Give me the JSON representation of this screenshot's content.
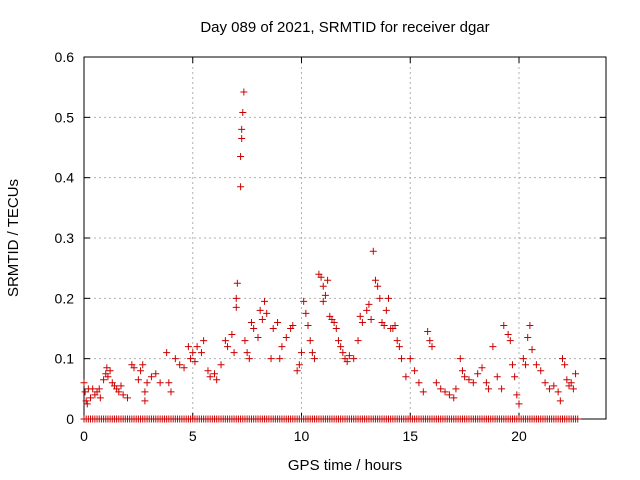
{
  "chart_data": {
    "type": "scatter",
    "title": "Day 089 of 2021, SRMTID for receiver dgar",
    "xlabel": "GPS time / hours",
    "ylabel": "SRMTID / TECUs",
    "xlim": [
      0,
      24
    ],
    "ylim": [
      0,
      0.6
    ],
    "xticks": [
      0,
      5,
      10,
      15,
      20
    ],
    "xtick_labels": [
      "0",
      "5",
      "10",
      "15",
      "20"
    ],
    "yticks": [
      0,
      0.1,
      0.2,
      0.3,
      0.4,
      0.5,
      0.6
    ],
    "ytick_labels": [
      "0",
      "0.1",
      "0.2",
      "0.3",
      "0.4",
      "0.5",
      "0.6"
    ],
    "grid": true,
    "marker": "plus",
    "color": "#cc0000",
    "baseline_series": {
      "name": "zero values",
      "x_start": 0.0,
      "x_end": 22.7,
      "x_step": 0.1,
      "y": 0
    },
    "series": [
      {
        "name": "SRMTID",
        "points": [
          [
            0.0,
            0.06
          ],
          [
            0.05,
            0.045
          ],
          [
            0.1,
            0.03
          ],
          [
            0.15,
            0.025
          ],
          [
            0.2,
            0.05
          ],
          [
            0.3,
            0.035
          ],
          [
            0.4,
            0.05
          ],
          [
            0.5,
            0.04
          ],
          [
            0.6,
            0.045
          ],
          [
            0.7,
            0.05
          ],
          [
            0.75,
            0.035
          ],
          [
            0.9,
            0.065
          ],
          [
            1.0,
            0.075
          ],
          [
            1.05,
            0.085
          ],
          [
            1.1,
            0.07
          ],
          [
            1.2,
            0.08
          ],
          [
            1.3,
            0.06
          ],
          [
            1.4,
            0.055
          ],
          [
            1.5,
            0.05
          ],
          [
            1.6,
            0.045
          ],
          [
            1.7,
            0.055
          ],
          [
            1.8,
            0.04
          ],
          [
            2.0,
            0.035
          ],
          [
            2.2,
            0.09
          ],
          [
            2.3,
            0.085
          ],
          [
            2.5,
            0.065
          ],
          [
            2.6,
            0.08
          ],
          [
            2.7,
            0.09
          ],
          [
            2.8,
            0.045
          ],
          [
            2.8,
            0.03
          ],
          [
            2.9,
            0.06
          ],
          [
            3.1,
            0.07
          ],
          [
            3.3,
            0.075
          ],
          [
            3.5,
            0.06
          ],
          [
            3.8,
            0.11
          ],
          [
            3.9,
            0.06
          ],
          [
            4.0,
            0.045
          ],
          [
            4.2,
            0.1
          ],
          [
            4.4,
            0.09
          ],
          [
            4.6,
            0.085
          ],
          [
            4.8,
            0.12
          ],
          [
            4.9,
            0.1
          ],
          [
            5.0,
            0.11
          ],
          [
            5.1,
            0.095
          ],
          [
            5.2,
            0.12
          ],
          [
            5.4,
            0.11
          ],
          [
            5.5,
            0.13
          ],
          [
            5.7,
            0.08
          ],
          [
            5.8,
            0.07
          ],
          [
            6.0,
            0.075
          ],
          [
            6.1,
            0.065
          ],
          [
            6.3,
            0.09
          ],
          [
            6.5,
            0.13
          ],
          [
            6.6,
            0.12
          ],
          [
            6.8,
            0.14
          ],
          [
            6.9,
            0.11
          ],
          [
            7.0,
            0.185
          ],
          [
            7.0,
            0.2
          ],
          [
            7.05,
            0.225
          ],
          [
            7.2,
            0.385
          ],
          [
            7.2,
            0.435
          ],
          [
            7.25,
            0.465
          ],
          [
            7.25,
            0.48
          ],
          [
            7.3,
            0.508
          ],
          [
            7.35,
            0.542
          ],
          [
            7.4,
            0.13
          ],
          [
            7.5,
            0.11
          ],
          [
            7.6,
            0.1
          ],
          [
            7.7,
            0.16
          ],
          [
            7.8,
            0.15
          ],
          [
            8.0,
            0.135
          ],
          [
            8.1,
            0.18
          ],
          [
            8.2,
            0.165
          ],
          [
            8.3,
            0.195
          ],
          [
            8.4,
            0.175
          ],
          [
            8.6,
            0.1
          ],
          [
            8.7,
            0.15
          ],
          [
            8.9,
            0.16
          ],
          [
            9.0,
            0.1
          ],
          [
            9.1,
            0.12
          ],
          [
            9.3,
            0.135
          ],
          [
            9.5,
            0.15
          ],
          [
            9.6,
            0.155
          ],
          [
            9.8,
            0.08
          ],
          [
            9.9,
            0.09
          ],
          [
            10.0,
            0.11
          ],
          [
            10.1,
            0.195
          ],
          [
            10.2,
            0.175
          ],
          [
            10.3,
            0.155
          ],
          [
            10.4,
            0.13
          ],
          [
            10.5,
            0.11
          ],
          [
            10.6,
            0.1
          ],
          [
            10.8,
            0.24
          ],
          [
            10.9,
            0.235
          ],
          [
            11.0,
            0.22
          ],
          [
            11.0,
            0.195
          ],
          [
            11.1,
            0.205
          ],
          [
            11.2,
            0.23
          ],
          [
            11.3,
            0.17
          ],
          [
            11.4,
            0.165
          ],
          [
            11.5,
            0.16
          ],
          [
            11.6,
            0.15
          ],
          [
            11.7,
            0.13
          ],
          [
            11.8,
            0.12
          ],
          [
            11.9,
            0.11
          ],
          [
            12.0,
            0.1
          ],
          [
            12.1,
            0.095
          ],
          [
            12.2,
            0.105
          ],
          [
            12.4,
            0.1
          ],
          [
            12.6,
            0.13
          ],
          [
            12.7,
            0.17
          ],
          [
            12.8,
            0.16
          ],
          [
            13.0,
            0.18
          ],
          [
            13.1,
            0.19
          ],
          [
            13.2,
            0.165
          ],
          [
            13.3,
            0.278
          ],
          [
            13.4,
            0.23
          ],
          [
            13.5,
            0.22
          ],
          [
            13.6,
            0.2
          ],
          [
            13.7,
            0.16
          ],
          [
            13.8,
            0.155
          ],
          [
            13.9,
            0.18
          ],
          [
            14.0,
            0.2
          ],
          [
            14.1,
            0.15
          ],
          [
            14.2,
            0.15
          ],
          [
            14.3,
            0.155
          ],
          [
            14.4,
            0.13
          ],
          [
            14.5,
            0.12
          ],
          [
            14.6,
            0.1
          ],
          [
            14.8,
            0.07
          ],
          [
            15.0,
            0.1
          ],
          [
            15.2,
            0.08
          ],
          [
            15.4,
            0.06
          ],
          [
            15.6,
            0.045
          ],
          [
            15.8,
            0.145
          ],
          [
            15.9,
            0.13
          ],
          [
            16.0,
            0.12
          ],
          [
            16.2,
            0.06
          ],
          [
            16.4,
            0.05
          ],
          [
            16.6,
            0.045
          ],
          [
            16.8,
            0.04
          ],
          [
            17.0,
            0.035
          ],
          [
            17.1,
            0.05
          ],
          [
            17.3,
            0.1
          ],
          [
            17.4,
            0.08
          ],
          [
            17.5,
            0.07
          ],
          [
            17.7,
            0.065
          ],
          [
            17.9,
            0.06
          ],
          [
            18.1,
            0.075
          ],
          [
            18.3,
            0.085
          ],
          [
            18.5,
            0.06
          ],
          [
            18.6,
            0.05
          ],
          [
            18.8,
            0.12
          ],
          [
            19.0,
            0.07
          ],
          [
            19.2,
            0.05
          ],
          [
            19.3,
            0.155
          ],
          [
            19.5,
            0.14
          ],
          [
            19.6,
            0.13
          ],
          [
            19.7,
            0.09
          ],
          [
            19.8,
            0.07
          ],
          [
            19.9,
            0.04
          ],
          [
            20.0,
            0.025
          ],
          [
            20.2,
            0.1
          ],
          [
            20.3,
            0.09
          ],
          [
            20.4,
            0.135
          ],
          [
            20.5,
            0.155
          ],
          [
            20.6,
            0.115
          ],
          [
            20.8,
            0.09
          ],
          [
            21.0,
            0.08
          ],
          [
            21.2,
            0.06
          ],
          [
            21.4,
            0.05
          ],
          [
            21.6,
            0.055
          ],
          [
            21.8,
            0.045
          ],
          [
            21.9,
            0.03
          ],
          [
            22.0,
            0.1
          ],
          [
            22.1,
            0.09
          ],
          [
            22.2,
            0.065
          ],
          [
            22.3,
            0.055
          ],
          [
            22.4,
            0.06
          ],
          [
            22.5,
            0.05
          ],
          [
            22.6,
            0.075
          ]
        ]
      }
    ]
  }
}
